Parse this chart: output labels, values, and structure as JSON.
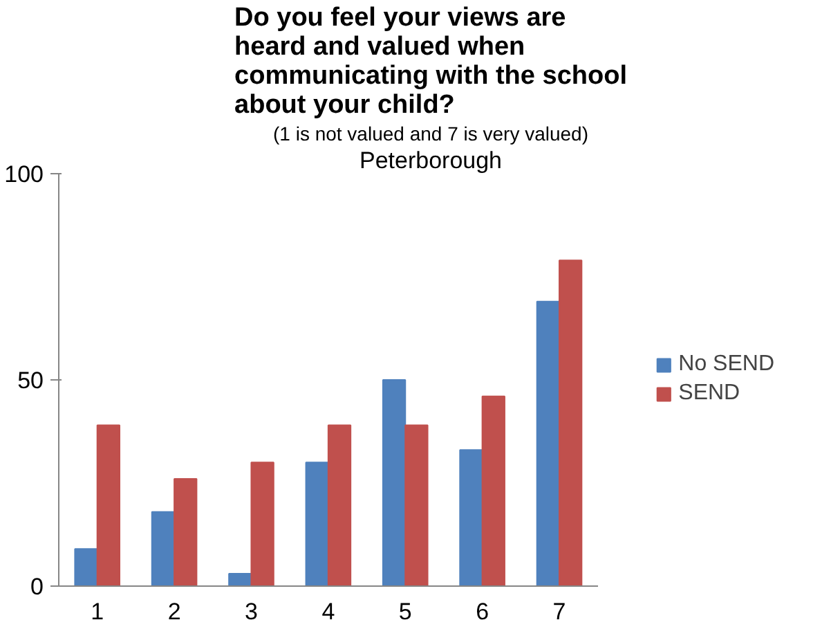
{
  "chart_data": {
    "type": "bar",
    "title": "Do you feel your views are heard and valued when communicating with the school about your child?",
    "subtitle": "(1 is not valued and 7 is very valued)",
    "annotations": [
      "Peterborough"
    ],
    "categories": [
      "1",
      "2",
      "3",
      "4",
      "5",
      "6",
      "7"
    ],
    "series": [
      {
        "name": "No SEND",
        "color": "#4f81bd",
        "values": [
          9,
          18,
          3,
          30,
          50,
          33,
          69
        ]
      },
      {
        "name": "SEND",
        "color": "#c0504d",
        "values": [
          39,
          26,
          30,
          39,
          39,
          46,
          79
        ]
      }
    ],
    "ylim": [
      0,
      100
    ],
    "yticks": [
      0,
      50,
      100
    ],
    "grid": false,
    "legend": "right"
  }
}
